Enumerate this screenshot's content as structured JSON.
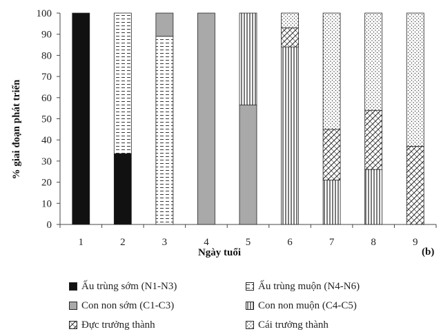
{
  "chart_data": {
    "type": "bar",
    "stacked": true,
    "categories": [
      "1",
      "2",
      "3",
      "4",
      "5",
      "6",
      "7",
      "8",
      "9"
    ],
    "xlabel": "Ngày tuổi",
    "ylabel": "% giai đoạn phát triển",
    "ylim": [
      0,
      100
    ],
    "yticks": [
      0,
      10,
      20,
      30,
      40,
      50,
      60,
      70,
      80,
      90,
      100
    ],
    "panel_label": "(b)",
    "series": [
      {
        "name": "Ấu trùng sớm (N1-N3)",
        "pattern": "solid-black",
        "values": [
          100,
          33.5,
          0,
          0,
          0,
          0,
          0,
          0,
          0
        ]
      },
      {
        "name": "Ấu trùng muộn (N4-N6)",
        "pattern": "dashes",
        "values": [
          0,
          66.5,
          89,
          0,
          0,
          0,
          0,
          0,
          0
        ]
      },
      {
        "name": "Con non sớm (C1-C3)",
        "pattern": "solid-gray",
        "values": [
          0,
          0,
          11,
          100,
          56.5,
          0,
          0,
          0,
          0
        ]
      },
      {
        "name": "Con non muộn (C4-C5)",
        "pattern": "vertical-lines",
        "values": [
          0,
          0,
          0,
          0,
          43.5,
          84,
          21,
          26,
          0
        ]
      },
      {
        "name": "Đực trưởng thành",
        "pattern": "diagonal-cross",
        "values": [
          0,
          0,
          0,
          0,
          0,
          9,
          24,
          28,
          37
        ]
      },
      {
        "name": "Cái trưởng thành",
        "pattern": "dots",
        "values": [
          0,
          0,
          0,
          0,
          0,
          7,
          55,
          46,
          63
        ]
      }
    ],
    "legend_position": "bottom",
    "grid": false
  }
}
